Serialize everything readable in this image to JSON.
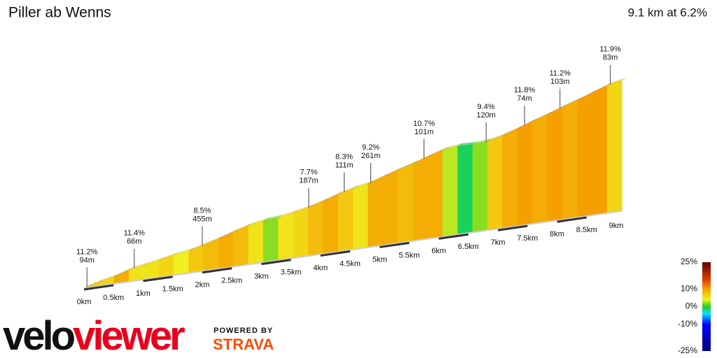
{
  "chart_data": {
    "type": "elevation-profile",
    "title": "Piller ab Wenns",
    "subtitle": "9.1 km at 6.2%",
    "xlim": [
      0,
      9.1
    ],
    "xticks": [
      {
        "value": 0,
        "label": "0km"
      },
      {
        "value": 0.5,
        "label": "0.5km"
      },
      {
        "value": 1,
        "label": "1km"
      },
      {
        "value": 1.5,
        "label": "1.5km"
      },
      {
        "value": 2,
        "label": "2km"
      },
      {
        "value": 2.5,
        "label": "2.5km"
      },
      {
        "value": 3,
        "label": "3km"
      },
      {
        "value": 3.5,
        "label": "3.5km"
      },
      {
        "value": 4,
        "label": "4km"
      },
      {
        "value": 4.5,
        "label": "4.5km"
      },
      {
        "value": 5,
        "label": "5km"
      },
      {
        "value": 5.5,
        "label": "5.5km"
      },
      {
        "value": 6,
        "label": "6km"
      },
      {
        "value": 6.5,
        "label": "6.5km"
      },
      {
        "value": 7,
        "label": "7km"
      },
      {
        "value": 7.5,
        "label": "7.5km"
      },
      {
        "value": 8,
        "label": "8km"
      },
      {
        "value": 8.5,
        "label": "8.5km"
      },
      {
        "value": 9,
        "label": "9km"
      }
    ],
    "grades": [
      7,
      6,
      9,
      5,
      5,
      6,
      4,
      7,
      8,
      9,
      8,
      5,
      2,
      5,
      6,
      8,
      9,
      7,
      5,
      9,
      9,
      8,
      9,
      9,
      3,
      -1,
      2,
      7,
      9,
      10,
      9,
      10,
      9,
      10,
      10,
      6
    ],
    "annotations": [
      {
        "grade": {
          "value": 11.2,
          "label": "11.2%"
        },
        "length": {
          "value": 94,
          "label": "94m"
        }
      },
      {
        "grade": {
          "value": 11.4,
          "label": "11.4%"
        },
        "length": {
          "value": 66,
          "label": "66m"
        }
      },
      {
        "grade": {
          "value": 8.5,
          "label": "8.5%"
        },
        "length": {
          "value": 455,
          "label": "455m"
        }
      },
      {
        "grade": {
          "value": 7.7,
          "label": "7.7%"
        },
        "length": {
          "value": 187,
          "label": "187m"
        }
      },
      {
        "grade": {
          "value": 8.3,
          "label": "8.3%"
        },
        "length": {
          "value": 111,
          "label": "111m"
        }
      },
      {
        "grade": {
          "value": 9.2,
          "label": "9.2%"
        },
        "length": {
          "value": 261,
          "label": "261m"
        }
      },
      {
        "grade": {
          "value": 10.7,
          "label": "10.7%"
        },
        "length": {
          "value": 101,
          "label": "101m"
        }
      },
      {
        "grade": {
          "value": 9.4,
          "label": "9.4%"
        },
        "length": {
          "value": 120,
          "label": "120m"
        }
      },
      {
        "grade": {
          "value": 11.8,
          "label": "11.8%"
        },
        "length": {
          "value": 74,
          "label": "74m"
        }
      },
      {
        "grade": {
          "value": 11.2,
          "label": "11.2%"
        },
        "length": {
          "value": 103,
          "label": "103m"
        }
      },
      {
        "grade": {
          "value": 11.9,
          "label": "11.9%"
        },
        "length": {
          "value": 83,
          "label": "83m"
        }
      }
    ],
    "legend_ticks": [
      {
        "value": 25,
        "label": "25%"
      },
      {
        "value": 10,
        "label": "10%"
      },
      {
        "value": 0,
        "label": "0%"
      },
      {
        "value": -10,
        "label": "-10%"
      },
      {
        "value": -25,
        "label": "-25%"
      }
    ],
    "colorscale": [
      [
        -25,
        "#000080"
      ],
      [
        -10,
        "#0000ff"
      ],
      [
        -4,
        "#00e0ff"
      ],
      [
        0,
        "#22cc22"
      ],
      [
        4,
        "#f0f020"
      ],
      [
        10,
        "#f5a000"
      ],
      [
        15,
        "#e04000"
      ],
      [
        25,
        "#600000"
      ]
    ],
    "branding": {
      "logo_a": "velo",
      "logo_b": "viewer",
      "powered": "POWERED BY",
      "strava": "STRAVA"
    }
  }
}
